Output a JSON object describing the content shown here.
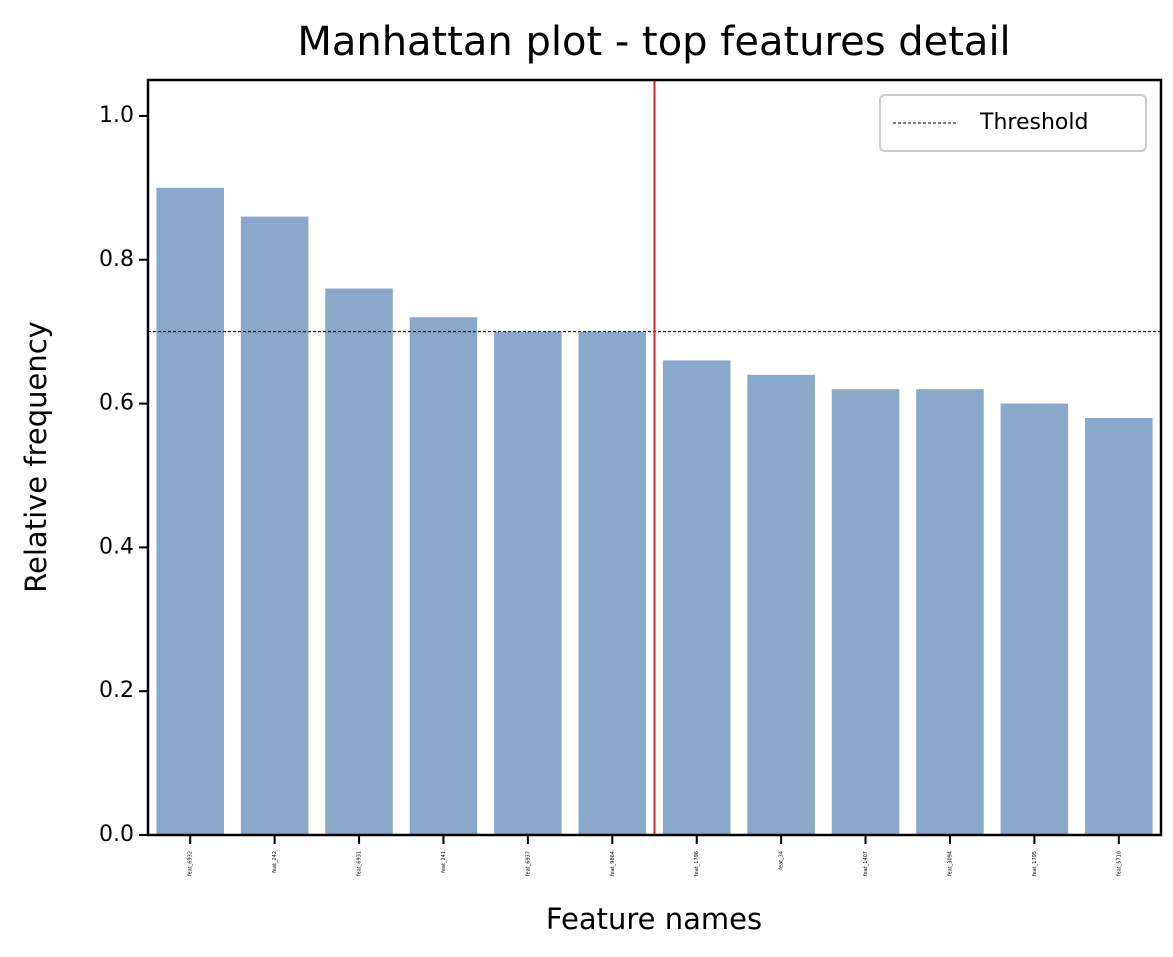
{
  "chart_data": {
    "type": "bar",
    "title": "Manhattan plot - top features detail",
    "x_label": "Feature names",
    "y_label": "Relative frequency",
    "categories": [
      "feat_6932",
      "feat_242",
      "feat_6931",
      "feat_241",
      "feat_6937",
      "feat_9864",
      "feat_1796",
      "feat_34",
      "feat_1407",
      "feat_3094",
      "feat_1795",
      "feat_5710"
    ],
    "values": [
      0.9,
      0.86,
      0.76,
      0.72,
      0.7,
      0.7,
      0.66,
      0.64,
      0.62,
      0.62,
      0.6,
      0.58
    ],
    "color": "#8aa8c9",
    "ylim": [
      0,
      1.05
    ],
    "yticks": [
      {
        "value": 0,
        "label": "0.0"
      },
      0.2,
      0.4,
      0.6,
      0.8,
      {
        "value": 1,
        "label": "1.0"
      }
    ],
    "threshold": {
      "name": "Threshold",
      "value": 0.7,
      "color": "#000000"
    },
    "cutoff": {
      "x": 5.5,
      "color": "#d62728"
    },
    "legend": "upper right"
  }
}
